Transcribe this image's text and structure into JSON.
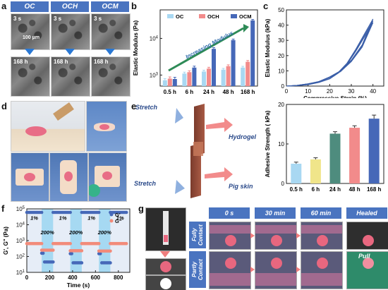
{
  "panels": {
    "a": {
      "label": "a",
      "columns": [
        "OC",
        "OCH",
        "OCM"
      ],
      "row_times": [
        "3 s",
        "168 h"
      ],
      "scale_bar": "100 μm"
    },
    "b": {
      "label": "b"
    },
    "c": {
      "label": "c"
    },
    "d": {
      "label": "d"
    },
    "e": {
      "label": "e",
      "stretch_top": "Stretch",
      "stretch_bottom": "Stretch",
      "hydrogel": "Hydrogel",
      "pig_skin": "Pig skin"
    },
    "f": {
      "label": "f"
    },
    "g": {
      "label": "g",
      "times": [
        "0 s",
        "30 min",
        "60 min",
        "Healed"
      ],
      "rows": [
        "Fully Contact",
        "Partly Contact"
      ],
      "pull": "Pull"
    }
  },
  "chart_data": [
    {
      "id": "b",
      "type": "bar",
      "ylabel": "Elastic Modulus (Pa)",
      "yscale": "log",
      "ylim": [
        500,
        60000
      ],
      "yticks": [
        "10^3",
        "10^4"
      ],
      "categories": [
        "0.5 h",
        "6 h",
        "24 h",
        "48 h",
        "168 h"
      ],
      "annotation": "Increasing Modulus",
      "legend_position": "top",
      "series": [
        {
          "name": "OC",
          "color": "#a9d8f2",
          "values": [
            720,
            1100,
            1250,
            1400,
            1600
          ],
          "errors": [
            80,
            100,
            110,
            120,
            130
          ]
        },
        {
          "name": "OCH",
          "color": "#f28b8b",
          "values": [
            800,
            1200,
            1500,
            1750,
            2300
          ],
          "errors": [
            90,
            110,
            130,
            150,
            200
          ]
        },
        {
          "name": "OCM",
          "color": "#4668b8",
          "values": [
            780,
            1600,
            5200,
            9000,
            31000
          ],
          "errors": [
            90,
            150,
            400,
            600,
            2000
          ]
        }
      ]
    },
    {
      "id": "c",
      "type": "line",
      "xlabel": "Compressive Strain (%)",
      "ylabel": "Elastic Modulus (kPa)",
      "xlim": [
        0,
        45
      ],
      "ylim": [
        0,
        50
      ],
      "xticks": [
        0,
        10,
        20,
        30,
        40
      ],
      "yticks": [
        0,
        10,
        20,
        30,
        40,
        50
      ],
      "series": [
        {
          "name": "loading",
          "x": [
            0,
            5,
            10,
            15,
            20,
            25,
            30,
            35,
            40
          ],
          "y": [
            0,
            0.5,
            1.5,
            3,
            6,
            10,
            17,
            27,
            44
          ]
        },
        {
          "name": "unloading",
          "x": [
            40,
            36,
            32,
            28,
            24,
            20,
            15,
            10,
            5,
            0
          ],
          "y": [
            44,
            34,
            24,
            15,
            9,
            5,
            2.5,
            1,
            0.3,
            0
          ]
        }
      ],
      "cycles": 3
    },
    {
      "id": "e",
      "type": "bar",
      "ylabel": "Adhesive Strength ( kPa)",
      "ylim": [
        0,
        20
      ],
      "yticks": [
        0,
        10,
        20
      ],
      "categories": [
        "0.5 h",
        "6 h",
        "24 h",
        "48 h",
        "168 h"
      ],
      "values": [
        5.0,
        6.1,
        12.6,
        14.1,
        16.4
      ],
      "errors": [
        0.4,
        0.4,
        0.5,
        0.5,
        0.9
      ],
      "colors": [
        "#a9d8f2",
        "#f0e58a",
        "#4e8c7e",
        "#f28b8b",
        "#4668b8"
      ]
    },
    {
      "id": "f",
      "type": "scatter",
      "xlabel": "Time (s)",
      "ylabel": "G', G\" (Pa)",
      "yscale": "log",
      "xlim": [
        0,
        900
      ],
      "ylim": [
        10,
        100000
      ],
      "xticks": [
        0,
        200,
        400,
        600,
        800
      ],
      "yticks": [
        "10^1",
        "10^2",
        "10^3",
        "10^4",
        "10^5"
      ],
      "legend": [
        "G'",
        "G\""
      ],
      "strain_labels": [
        "1%",
        "200%",
        "1%",
        "200%",
        "1%",
        "200%",
        "1%"
      ],
      "high_strain_intervals": [
        [
          130,
          230
        ],
        [
          380,
          480
        ],
        [
          630,
          730
        ]
      ],
      "series": [
        {
          "name": "G'",
          "color": "#4668b8",
          "segments": [
            {
              "x0": 0,
              "x1": 130,
              "y": 60000
            },
            {
              "x0": 130,
              "x1": 230,
              "y": 45,
              "start": 160
            },
            {
              "x0": 230,
              "x1": 380,
              "y": 60000
            },
            {
              "x0": 380,
              "x1": 480,
              "y": 40,
              "start": 150
            },
            {
              "x0": 480,
              "x1": 630,
              "y": 60000
            },
            {
              "x0": 630,
              "x1": 730,
              "y": 40,
              "start": 150
            },
            {
              "x0": 730,
              "x1": 870,
              "y": 60000
            }
          ]
        },
        {
          "name": "G\"",
          "color": "#f28b7a",
          "segments": [
            {
              "x0": 0,
              "x1": 130,
              "y": 650
            },
            {
              "x0": 130,
              "x1": 230,
              "y": 250
            },
            {
              "x0": 230,
              "x1": 380,
              "y": 650
            },
            {
              "x0": 380,
              "x1": 480,
              "y": 230
            },
            {
              "x0": 480,
              "x1": 630,
              "y": 650
            },
            {
              "x0": 630,
              "x1": 730,
              "y": 220
            },
            {
              "x0": 730,
              "x1": 870,
              "y": 650
            }
          ]
        }
      ]
    }
  ]
}
